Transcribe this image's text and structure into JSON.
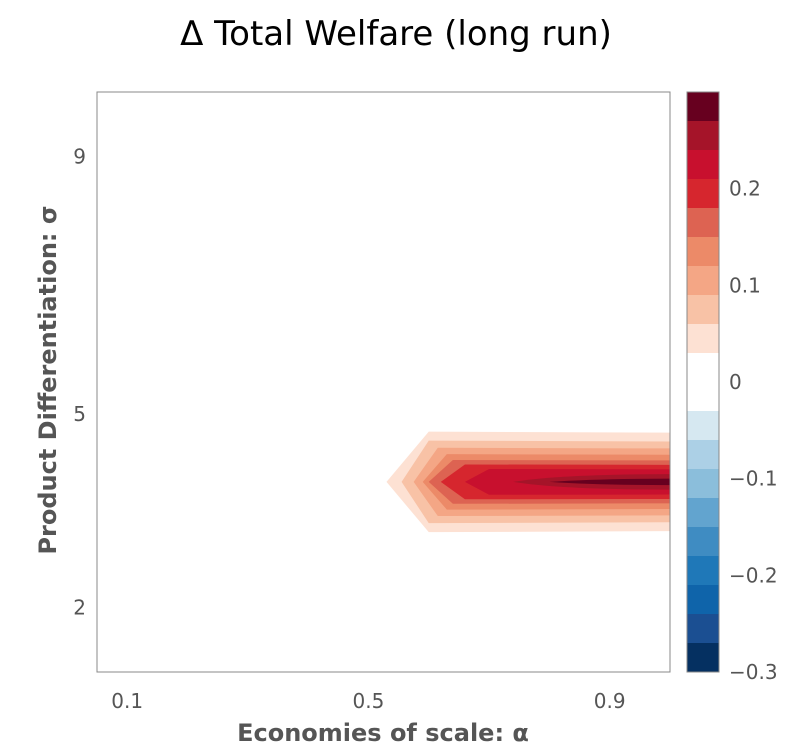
{
  "chart_data": {
    "type": "contour",
    "title": "Δ Total Welfare (long run)",
    "xlabel": "Economies of scale: α",
    "ylabel": "Product Differentiation: σ",
    "xlim": [
      0.05,
      1.0
    ],
    "ylim": [
      1.0,
      10.0
    ],
    "xticks": [
      0.1,
      0.5,
      0.9
    ],
    "yticks": [
      2,
      5,
      9
    ],
    "colorbar": {
      "range": [
        -0.3,
        0.3
      ],
      "ticks": [
        0.2,
        0.1,
        0,
        -0.1,
        -0.2,
        -0.3
      ],
      "tick_labels": [
        "0.2",
        "0.1",
        "0",
        "−0.1",
        "−0.2",
        "−0.3"
      ],
      "colors_top_to_bottom": [
        "#67001f",
        "#a51429",
        "#c8102e",
        "#d6262e",
        "#dd6352",
        "#ec8a68",
        "#f4a685",
        "#f8c2a6",
        "#fde1d3",
        "#ffffff",
        "#ffffff",
        "#d6e8f1",
        "#acd0e6",
        "#8bbedb",
        "#62a4cf",
        "#3f8cc2",
        "#1f78b8",
        "#0f64aa",
        "#1b4f92",
        "#053061"
      ]
    },
    "region": {
      "description_values": "positive welfare band peaking near sigma 3.95 for alpha ≥ 0.6",
      "peak_sigma": 3.95,
      "alpha_start": 0.53,
      "alpha_full": 0.6,
      "peak_value": 0.3
    }
  }
}
